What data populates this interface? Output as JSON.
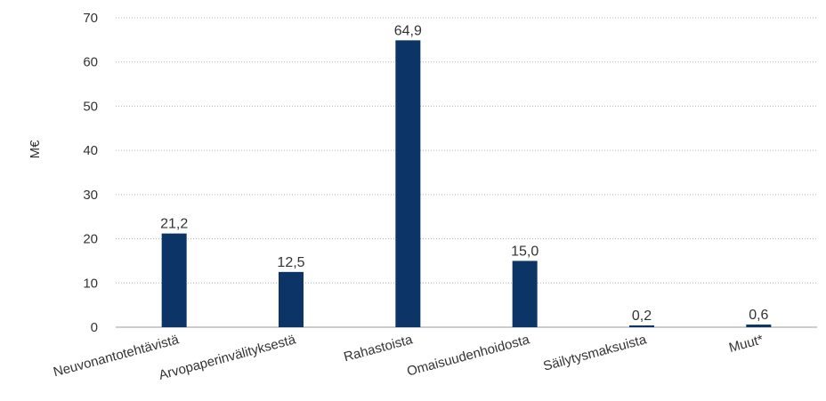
{
  "chart_data": {
    "type": "bar",
    "title": "",
    "xlabel": "",
    "ylabel": "M€",
    "ylim": [
      0,
      70
    ],
    "yticks": [
      0,
      10,
      20,
      30,
      40,
      50,
      60,
      70
    ],
    "grid": true,
    "legend": "none",
    "categories": [
      "Neuvonantotehtävistä",
      "Arvopaperinvälityksestä",
      "Rahastoista",
      "Omaisuudenhoidosta",
      "Säilytysmaksuista",
      "Muut*"
    ],
    "values": [
      21.2,
      12.5,
      64.9,
      15.0,
      0.2,
      0.6
    ],
    "value_labels": [
      "21,2",
      "12,5",
      "64,9",
      "15,0",
      "0,2",
      "0,6"
    ],
    "colors": {
      "bar": "#0d3466"
    }
  }
}
